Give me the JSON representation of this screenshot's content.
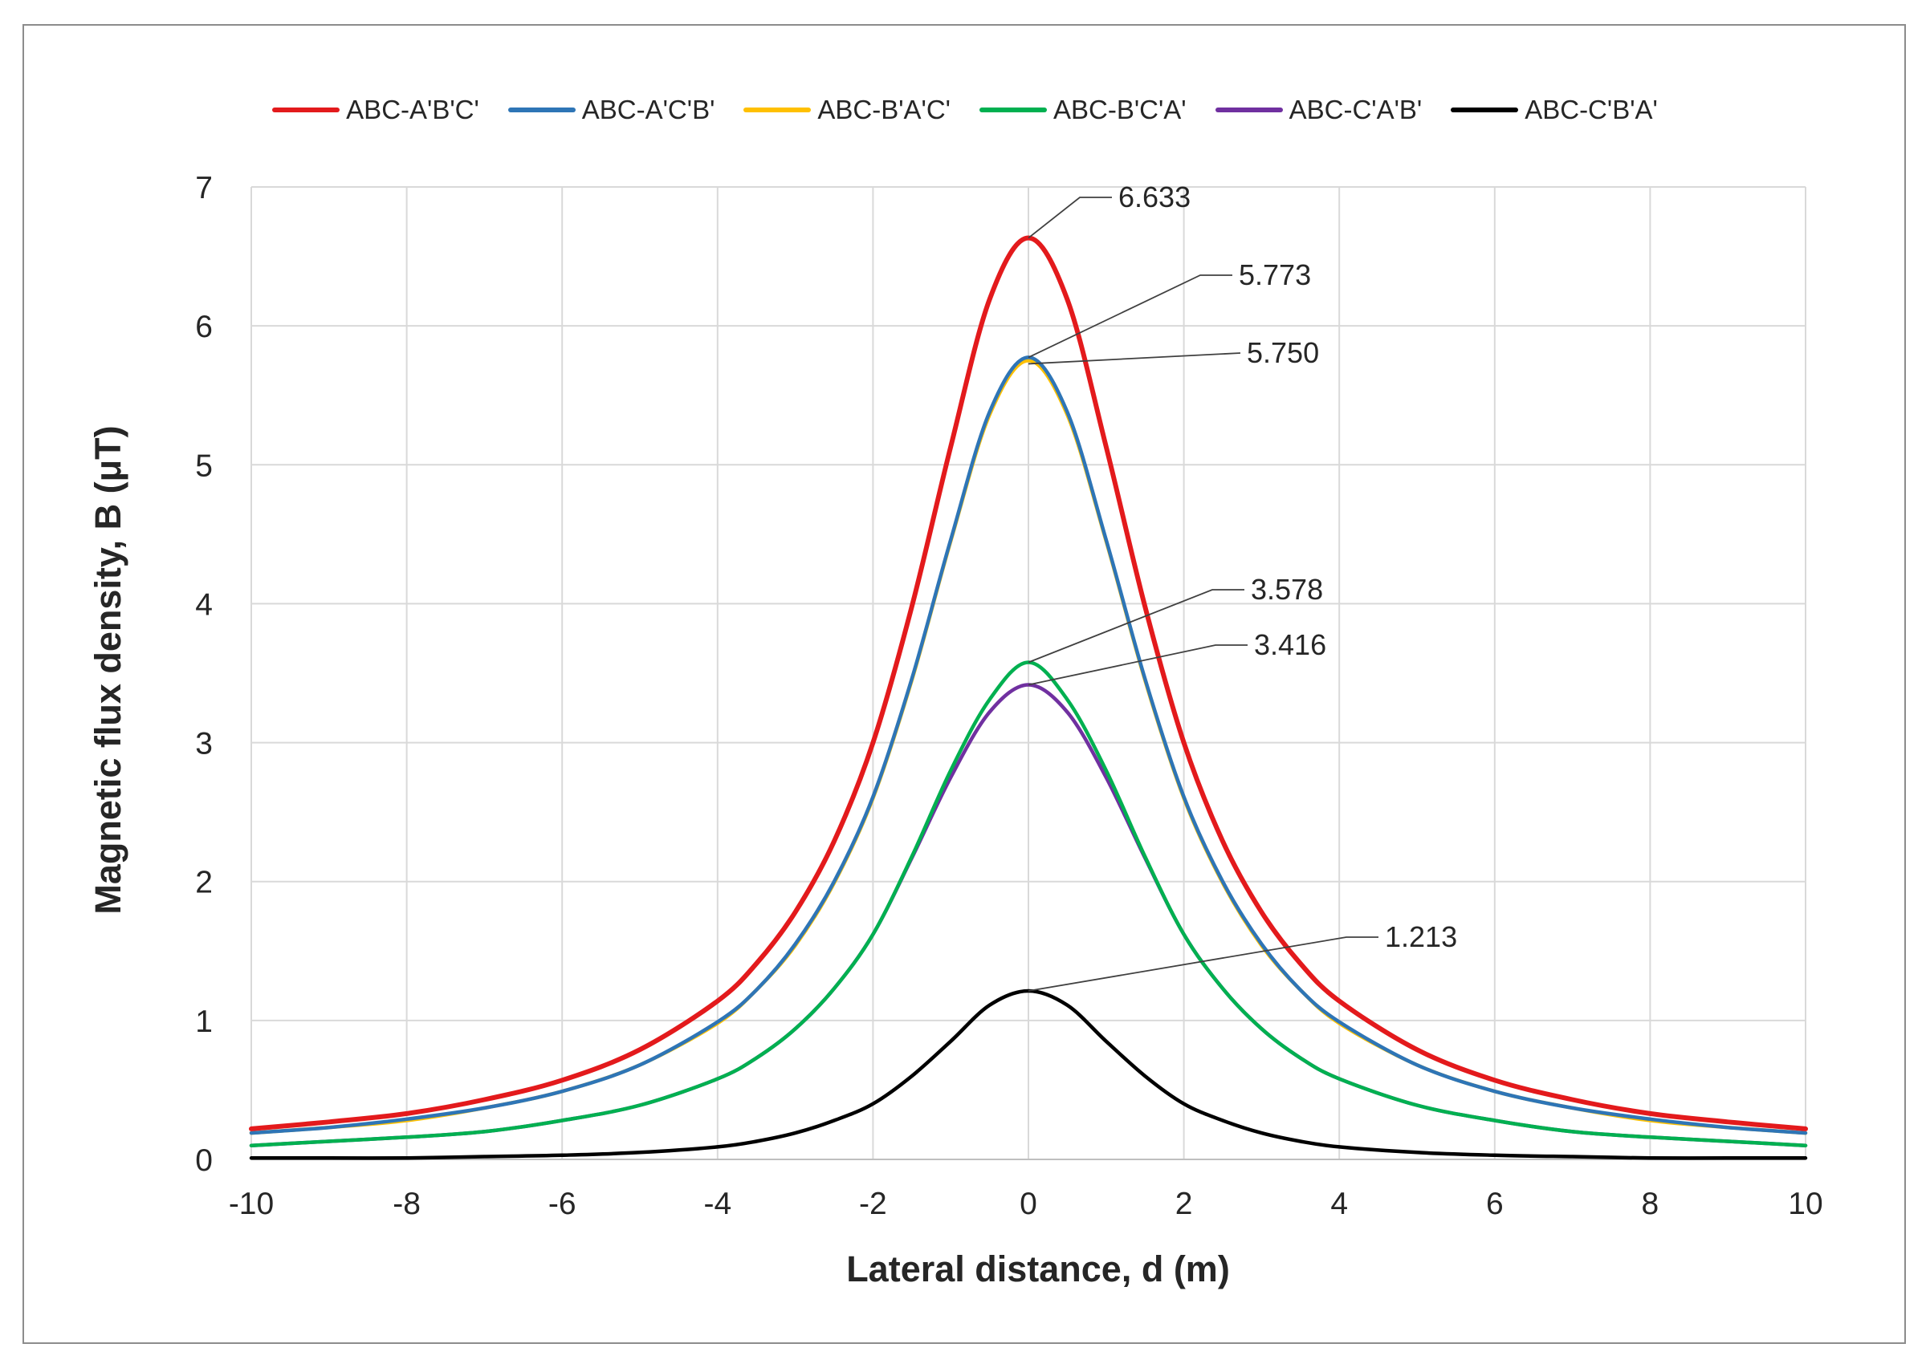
{
  "chart_data": {
    "type": "line",
    "title": "",
    "xlabel": "Lateral distance, d (m)",
    "ylabel": "Magnetic flux density, B (μT)",
    "xlim": [
      -10,
      10
    ],
    "ylim": [
      0,
      7
    ],
    "x_ticks": [
      -10,
      -8,
      -6,
      -4,
      -2,
      0,
      2,
      4,
      6,
      8,
      10
    ],
    "x_tick_labels": [
      "-10",
      "-8",
      "-6",
      "-4",
      "-2",
      "0",
      "2",
      "4",
      "6",
      "8",
      "10"
    ],
    "y_ticks": [
      0,
      1,
      2,
      3,
      4,
      5,
      6,
      7
    ],
    "y_tick_labels": [
      "0",
      "1",
      "2",
      "3",
      "4",
      "5",
      "6",
      "7"
    ],
    "grid": true,
    "legend_position": "top",
    "x": [
      -10,
      -9,
      -8,
      -7,
      -6,
      -5,
      -4,
      -3.5,
      -3,
      -2.5,
      -2,
      -1.5,
      -1,
      -0.5,
      0,
      0.5,
      1,
      1.5,
      2,
      2.5,
      3,
      3.5,
      4,
      5,
      6,
      7,
      8,
      9,
      10
    ],
    "series": [
      {
        "name": "ABC-A'B'C'",
        "color": "#e31a1c",
        "peak": 6.633,
        "values": [
          0.22,
          0.27,
          0.33,
          0.43,
          0.57,
          0.79,
          1.14,
          1.41,
          1.78,
          2.29,
          3.0,
          3.98,
          5.13,
          6.19,
          6.633,
          6.19,
          5.13,
          3.98,
          3.0,
          2.29,
          1.78,
          1.41,
          1.14,
          0.79,
          0.57,
          0.43,
          0.33,
          0.27,
          0.22
        ]
      },
      {
        "name": "ABC-A'C'B'",
        "color": "#2e75b6",
        "peak": 5.773,
        "values": [
          0.19,
          0.23,
          0.29,
          0.37,
          0.49,
          0.68,
          0.99,
          1.22,
          1.55,
          2.0,
          2.61,
          3.46,
          4.46,
          5.38,
          5.773,
          5.38,
          4.46,
          3.46,
          2.61,
          2.0,
          1.55,
          1.22,
          0.99,
          0.68,
          0.49,
          0.37,
          0.29,
          0.23,
          0.19
        ]
      },
      {
        "name": "ABC-B'A'C'",
        "color": "#ffc000",
        "peak": 5.75,
        "values": [
          0.19,
          0.23,
          0.28,
          0.37,
          0.49,
          0.68,
          0.98,
          1.22,
          1.54,
          1.99,
          2.6,
          3.45,
          4.45,
          5.36,
          5.75,
          5.36,
          4.45,
          3.45,
          2.6,
          1.99,
          1.54,
          1.22,
          0.98,
          0.68,
          0.49,
          0.37,
          0.28,
          0.23,
          0.19
        ]
      },
      {
        "name": "ABC-B'C'A'",
        "color": "#00b050",
        "peak": 3.578,
        "values": [
          0.1,
          0.13,
          0.16,
          0.2,
          0.28,
          0.39,
          0.58,
          0.73,
          0.94,
          1.23,
          1.62,
          2.18,
          2.8,
          3.31,
          3.578,
          3.31,
          2.8,
          2.18,
          1.62,
          1.23,
          0.94,
          0.73,
          0.58,
          0.39,
          0.28,
          0.2,
          0.16,
          0.13,
          0.1
        ]
      },
      {
        "name": "ABC-C'A'B'",
        "color": "#7030a0",
        "peak": 3.416,
        "values": [
          0.1,
          0.13,
          0.16,
          0.2,
          0.28,
          0.39,
          0.58,
          0.73,
          0.94,
          1.23,
          1.62,
          2.17,
          2.75,
          3.22,
          3.416,
          3.22,
          2.75,
          2.17,
          1.62,
          1.23,
          0.94,
          0.73,
          0.58,
          0.39,
          0.28,
          0.2,
          0.16,
          0.13,
          0.1
        ]
      },
      {
        "name": "ABC-C'B'A'",
        "color": "#000000",
        "peak": 1.213,
        "values": [
          0.01,
          0.01,
          0.01,
          0.02,
          0.03,
          0.05,
          0.09,
          0.13,
          0.19,
          0.28,
          0.4,
          0.6,
          0.85,
          1.11,
          1.213,
          1.11,
          0.85,
          0.6,
          0.4,
          0.28,
          0.19,
          0.13,
          0.09,
          0.05,
          0.03,
          0.02,
          0.01,
          0.01,
          0.01
        ]
      }
    ],
    "annotations": [
      {
        "label": "6.633",
        "series": "ABC-A'B'C'",
        "x": 0,
        "y": 6.633
      },
      {
        "label": "5.773",
        "series": "ABC-A'C'B'",
        "x": 0,
        "y": 5.773
      },
      {
        "label": "5.750",
        "series": "ABC-B'A'C'",
        "x": 0,
        "y": 5.75
      },
      {
        "label": "3.578",
        "series": "ABC-B'C'A'",
        "x": 0,
        "y": 3.578
      },
      {
        "label": "3.416",
        "series": "ABC-C'A'B'",
        "x": 0,
        "y": 3.416
      },
      {
        "label": "1.213",
        "series": "ABC-C'B'A'",
        "x": 0,
        "y": 1.213
      }
    ]
  }
}
